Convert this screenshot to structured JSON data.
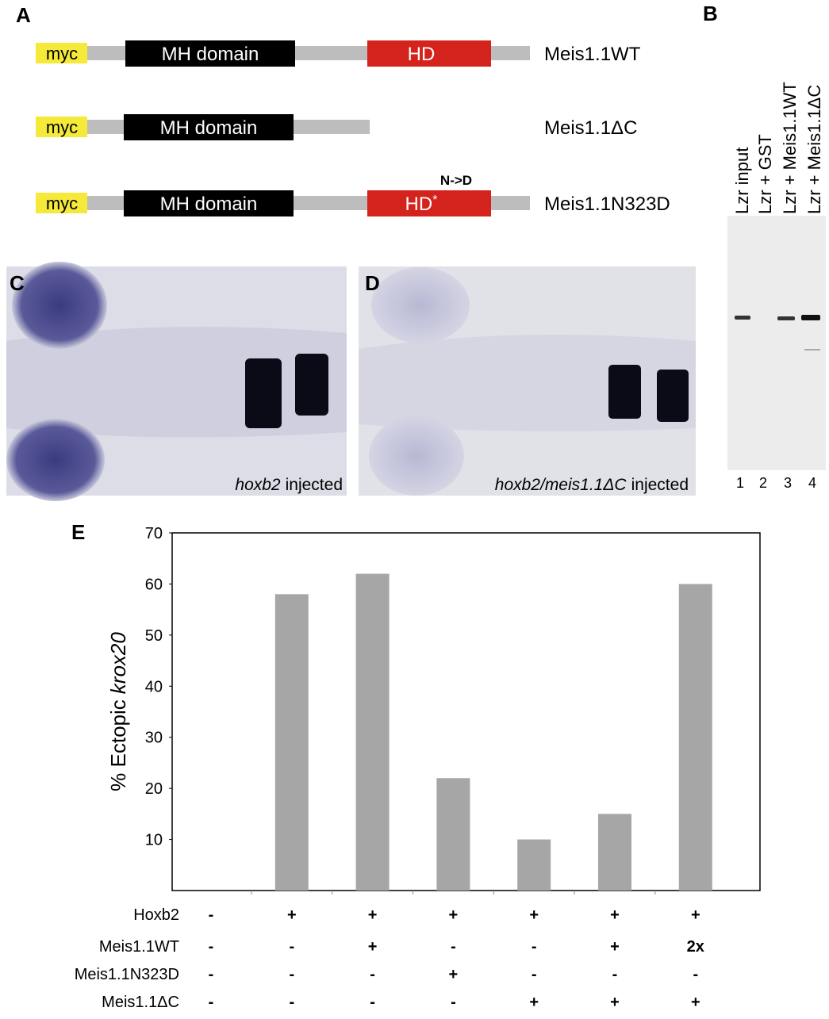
{
  "panel_labels": [
    "A",
    "B",
    "C",
    "D",
    "E"
  ],
  "constructs": [
    {
      "tag": "myc",
      "domain": "MH domain",
      "hd": "HD",
      "name": "Meis1.1WT"
    },
    {
      "tag": "myc",
      "domain": "MH domain",
      "name": "Meis1.1ΔC"
    },
    {
      "tag": "myc",
      "domain": "MH domain",
      "hd": "HD",
      "hd_mark": "*",
      "mutation": "N->D",
      "name": "Meis1.1N323D"
    }
  ],
  "blot": {
    "lanes": [
      {
        "label": "Lzr input",
        "number": "1"
      },
      {
        "label": "Lzr + GST",
        "number": "2"
      },
      {
        "label": "Lzr + Meis1.1WT",
        "number": "3"
      },
      {
        "label": "Lzr + Meis1.1ΔC",
        "number": "4"
      }
    ]
  },
  "images": [
    {
      "caption_italic": "hoxb2",
      "caption_rest": "injected"
    },
    {
      "caption_italic": "hoxb2/meis1.1ΔC",
      "caption_rest": "injected"
    }
  ],
  "chart_data": {
    "type": "bar",
    "categories": [
      null,
      null,
      null,
      null,
      null,
      null,
      null
    ],
    "values": [
      0,
      58,
      62,
      22,
      10,
      15,
      60
    ],
    "color": "#a6a6a6",
    "ylabel": "% Ectopic",
    "ylabel_italic": "krox20",
    "ylim": [
      0,
      70
    ],
    "yticks": [
      10,
      20,
      30,
      40,
      50,
      60,
      70
    ],
    "conditions": [
      {
        "name": "Hoxb2",
        "values": [
          "-",
          "+",
          "+",
          "+",
          "+",
          "+",
          "+"
        ]
      },
      {
        "name": "Meis1.1WT",
        "values": [
          "-",
          "-",
          "+",
          "-",
          "-",
          "+",
          "2x"
        ]
      },
      {
        "name": "Meis1.1N323D",
        "values": [
          "-",
          "-",
          "-",
          "+",
          "-",
          "-",
          "-"
        ]
      },
      {
        "name": "Meis1.1ΔC",
        "values": [
          "-",
          "-",
          "-",
          "-",
          "+",
          "+",
          "+"
        ]
      }
    ]
  }
}
